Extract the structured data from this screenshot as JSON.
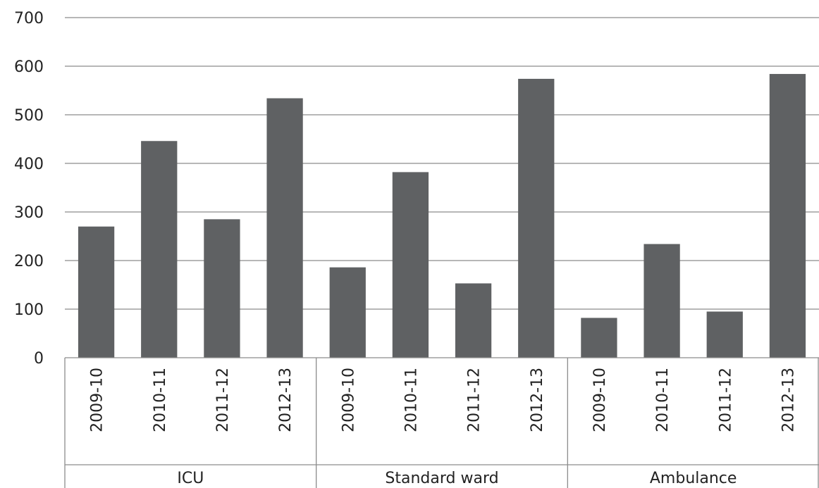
{
  "chart_data": {
    "type": "bar",
    "title": "",
    "xlabel": "",
    "ylabel": "",
    "ylim": [
      0,
      700
    ],
    "yticks": [
      0,
      100,
      200,
      300,
      400,
      500,
      600,
      700
    ],
    "grid": true,
    "legend": "none",
    "bar_color": "#5f6163",
    "groups": [
      {
        "label": "ICU",
        "categories": [
          "2009-10",
          "2010-11",
          "2011-12",
          "2012-13"
        ],
        "values": [
          270,
          446,
          285,
          534
        ]
      },
      {
        "label": "Standard ward",
        "categories": [
          "2009-10",
          "2010-11",
          "2011-12",
          "2012-13"
        ],
        "values": [
          186,
          382,
          153,
          574
        ]
      },
      {
        "label": "Ambulance",
        "categories": [
          "2009-10",
          "2010-11",
          "2011-12",
          "2012-13"
        ],
        "values": [
          82,
          234,
          95,
          584
        ]
      }
    ]
  }
}
